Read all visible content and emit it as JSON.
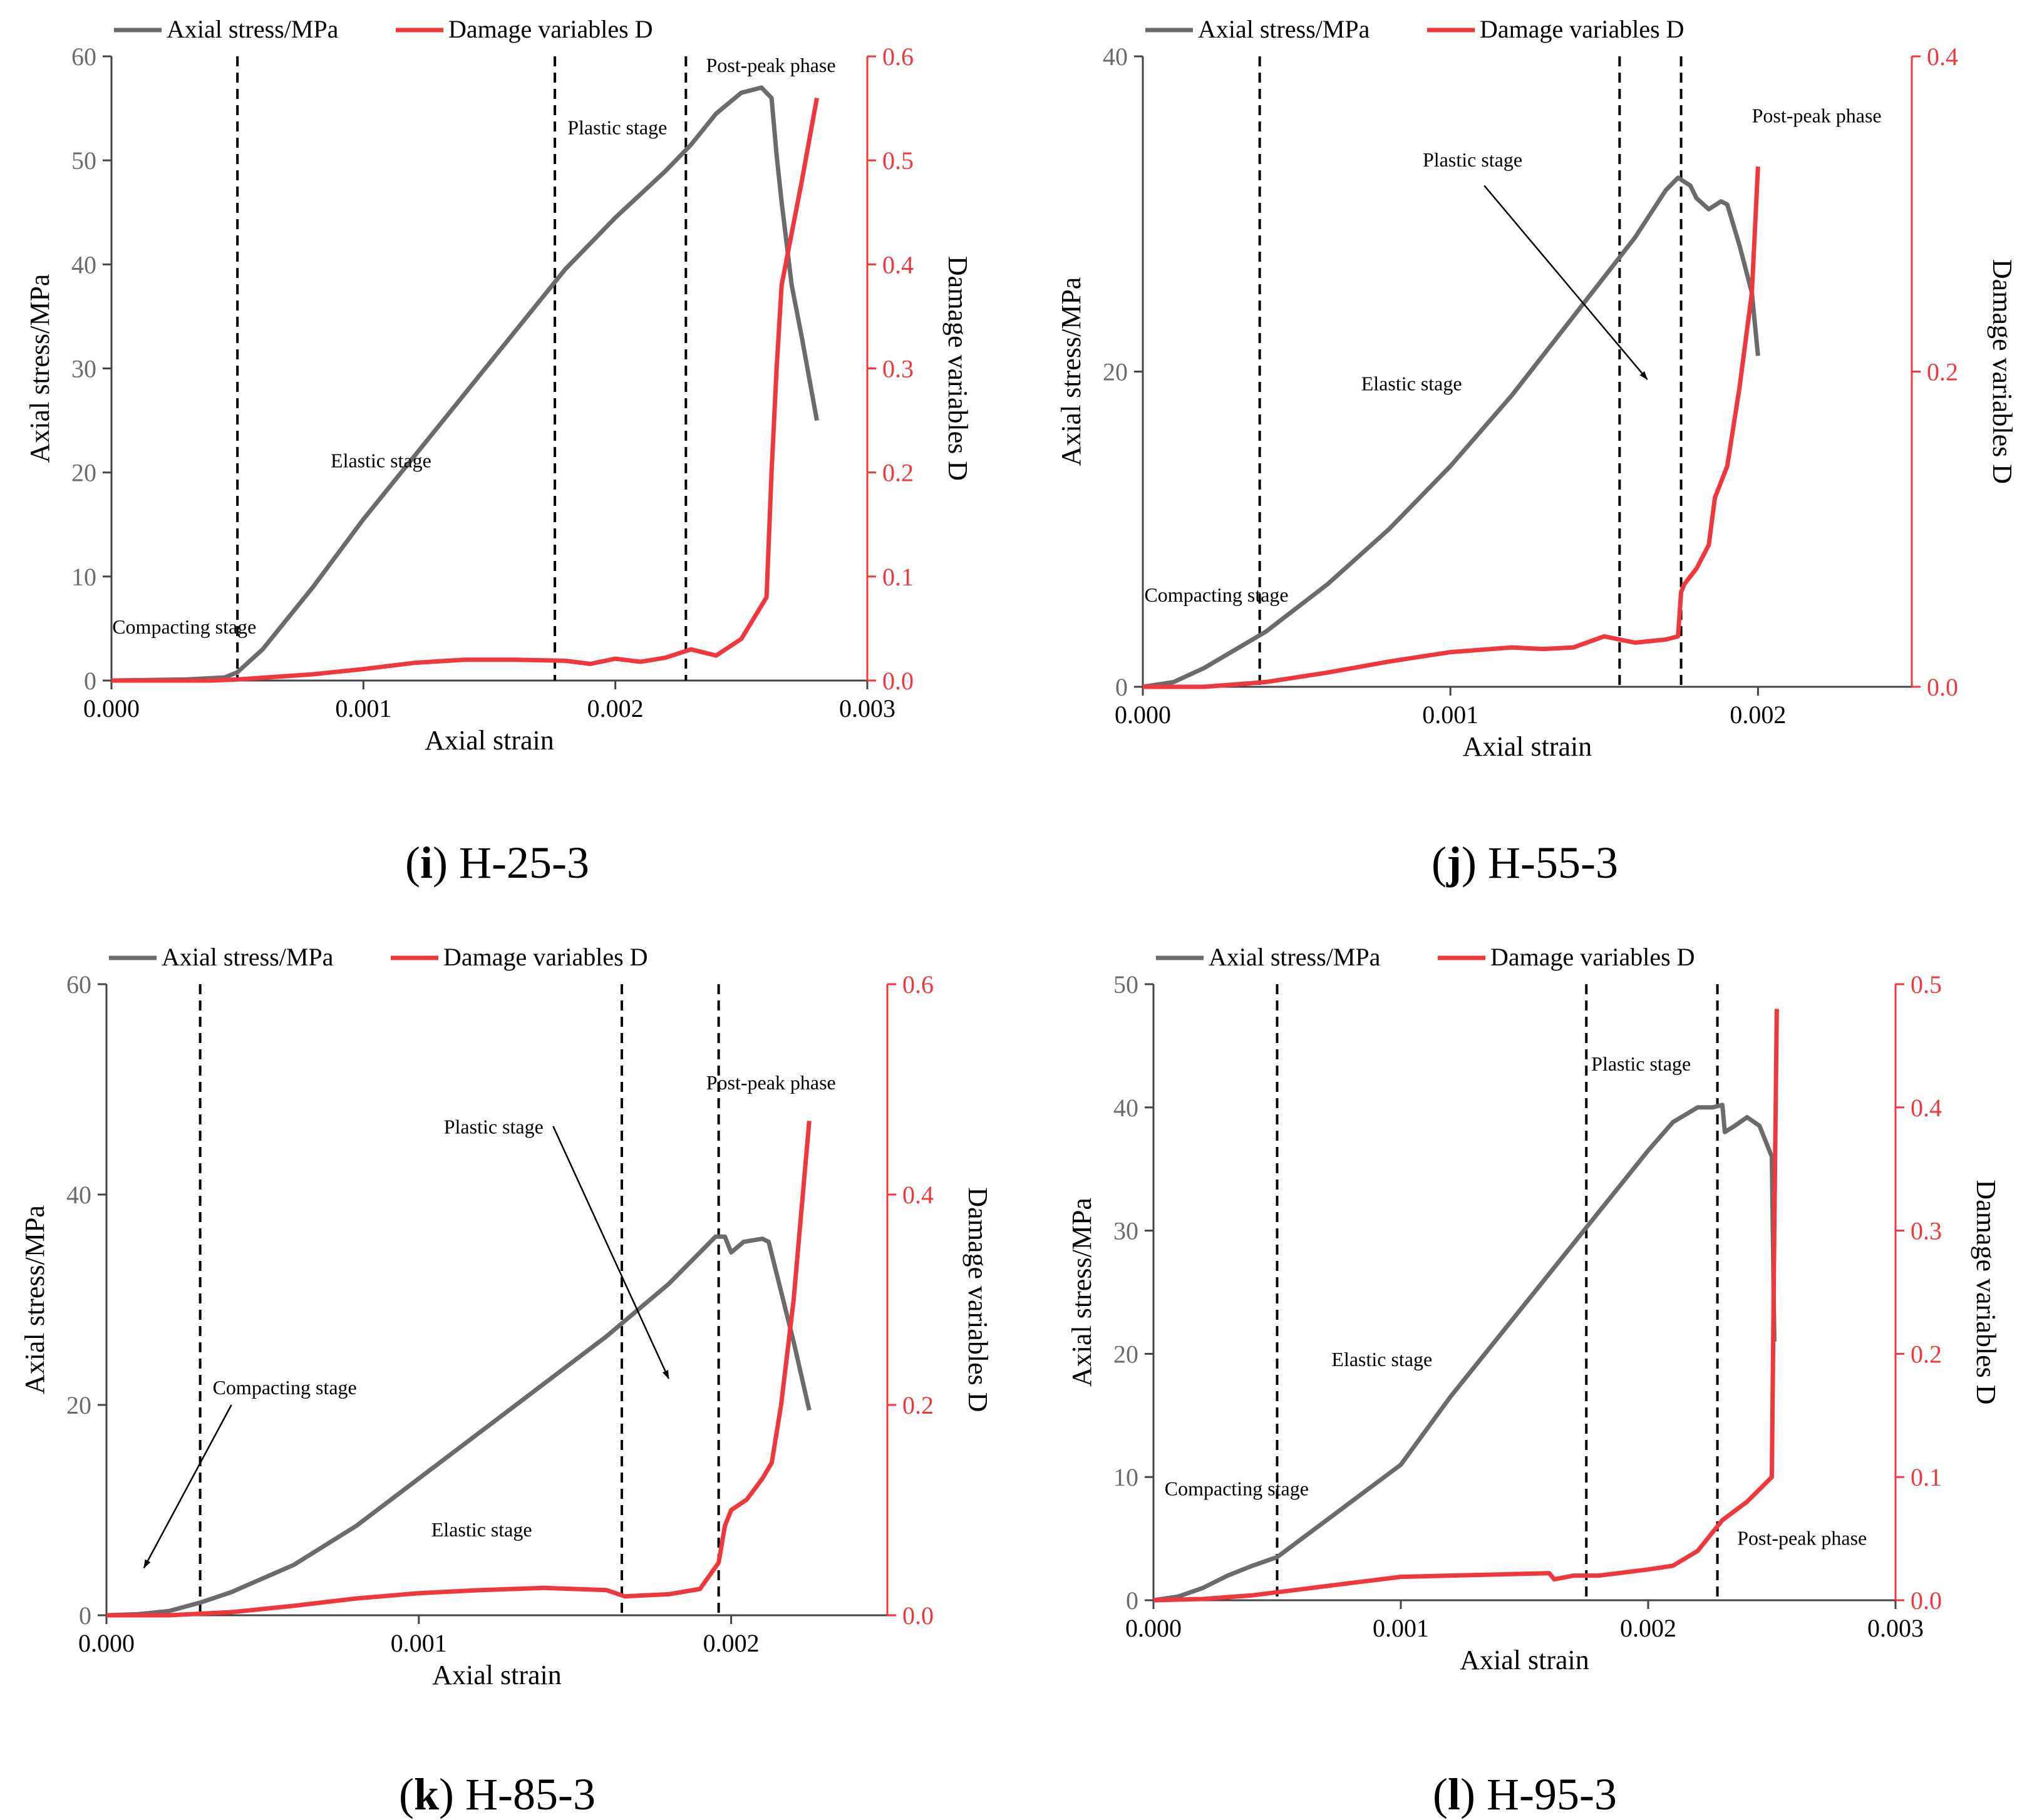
{
  "figure": {
    "legend_stress": "Axial stress/MPa",
    "legend_damage": "Damage variables D",
    "colors": {
      "stress": "#6b6b6b",
      "damage": "#f0383c",
      "axis_right": "#f0383c",
      "axis_left": "#555555",
      "text": "#000000"
    }
  },
  "chart_data": [
    {
      "type": "line",
      "id": "i",
      "caption_letter": "i",
      "caption_text": ") H-25-3",
      "caption_open": "(",
      "xlabel": "Axial strain",
      "ylabel": "Axial stress/MPa",
      "y2label": "Damage variables D",
      "xlim": [
        0,
        0.003
      ],
      "ylim": [
        0,
        60
      ],
      "y2lim": [
        0,
        0.6
      ],
      "xticks": [
        0,
        0.001,
        0.002,
        0.003
      ],
      "xtick_labels": [
        "0.000",
        "0.001",
        "0.002",
        "0.003"
      ],
      "yticks": [
        0,
        10,
        20,
        30,
        40,
        50,
        60
      ],
      "ytick_labels": [
        "0",
        "10",
        "20",
        "30",
        "40",
        "50",
        "60"
      ],
      "y2ticks": [
        0,
        0.1,
        0.2,
        0.3,
        0.4,
        0.5,
        0.6
      ],
      "y2tick_labels": [
        "0.0",
        "0.1",
        "0.2",
        "0.3",
        "0.4",
        "0.5",
        "0.6"
      ],
      "dividers": [
        0.0005,
        0.00176,
        0.00228
      ],
      "annotations": [
        {
          "text": "Compacting stage",
          "x": 3e-06,
          "y": 4.5
        },
        {
          "text": "Elastic stage",
          "x": 0.00087,
          "y": 20.5
        },
        {
          "text": "Plastic stage",
          "x": 0.00181,
          "y": 52.5
        },
        {
          "text": "Post-peak phase",
          "x": 0.00236,
          "y": 58.5
        }
      ],
      "arrows": [],
      "series": [
        {
          "name": "Axial stress/MPa",
          "axis": "left",
          "x": [
            0,
            0.0003,
            0.00045,
            0.0005,
            0.0006,
            0.0008,
            0.001,
            0.0012,
            0.0014,
            0.0016,
            0.0018,
            0.002,
            0.0022,
            0.0023,
            0.0024,
            0.0025,
            0.00258,
            0.00262,
            0.00264,
            0.00266,
            0.0027,
            0.00274,
            0.0028
          ],
          "values": [
            0,
            0.1,
            0.3,
            0.8,
            3,
            9,
            15.5,
            21.5,
            27.5,
            33.5,
            39.5,
            44.5,
            49,
            51.5,
            54.5,
            56.5,
            57,
            56,
            50.5,
            46,
            38,
            33,
            25
          ]
        },
        {
          "name": "Damage variables D",
          "axis": "right",
          "x": [
            0,
            0.0004,
            0.0005,
            0.0008,
            0.001,
            0.0012,
            0.0014,
            0.0016,
            0.0018,
            0.0019,
            0.002,
            0.0021,
            0.0022,
            0.0023,
            0.0024,
            0.0025,
            0.0026,
            0.00262,
            0.00264,
            0.00266,
            0.0027,
            0.00274,
            0.0028
          ],
          "values": [
            0,
            0,
            0.001,
            0.006,
            0.011,
            0.017,
            0.02,
            0.02,
            0.019,
            0.016,
            0.021,
            0.018,
            0.022,
            0.03,
            0.024,
            0.04,
            0.08,
            0.2,
            0.3,
            0.38,
            0.43,
            0.48,
            0.56
          ]
        }
      ]
    },
    {
      "type": "line",
      "id": "j",
      "caption_letter": "j",
      "caption_text": ") H-55-3",
      "caption_open": "(",
      "xlabel": "Axial strain",
      "ylabel": "Axial stress/MPa",
      "y2label": "Damage variables D",
      "xlim": [
        0,
        0.0025
      ],
      "ylim": [
        0,
        40
      ],
      "y2lim": [
        0,
        0.4
      ],
      "xticks": [
        0,
        0.001,
        0.002
      ],
      "xtick_labels": [
        "0.000",
        "0.001",
        "0.002"
      ],
      "yticks": [
        0,
        20,
        40
      ],
      "ytick_labels": [
        "0",
        "20",
        "40"
      ],
      "y2ticks": [
        0,
        0.2,
        0.4
      ],
      "y2tick_labels": [
        "0.0",
        "0.2",
        "0.4"
      ],
      "dividers": [
        0.00038,
        0.00155,
        0.00175
      ],
      "annotations": [
        {
          "text": "Compacting stage",
          "x": 5e-06,
          "y": 5.4
        },
        {
          "text": "Elastic stage",
          "x": 0.00071,
          "y": 18.8
        },
        {
          "text": "Plastic stage",
          "x": 0.00091,
          "y": 33.0
        },
        {
          "text": "Post-peak phase",
          "x": 0.00198,
          "y": 35.8
        }
      ],
      "arrows": [
        {
          "x1": 0.00111,
          "y1": 31.8,
          "x2": 0.00164,
          "y2": 19.5
        }
      ],
      "series": [
        {
          "name": "Axial stress/MPa",
          "axis": "left",
          "x": [
            0,
            0.0001,
            0.0002,
            0.0004,
            0.0006,
            0.0008,
            0.001,
            0.0012,
            0.0014,
            0.0016,
            0.0017,
            0.00174,
            0.00178,
            0.0018,
            0.00184,
            0.00188,
            0.0019,
            0.00194,
            0.00198,
            0.002
          ],
          "values": [
            0,
            0.3,
            1.2,
            3.5,
            6.5,
            10,
            14,
            18.5,
            23.5,
            28.5,
            31.5,
            32.3,
            31.8,
            31,
            30.3,
            30.8,
            30.6,
            28,
            25,
            21
          ]
        },
        {
          "name": "Damage variables D",
          "axis": "right",
          "x": [
            0,
            0.0002,
            0.0004,
            0.0006,
            0.0008,
            0.001,
            0.0012,
            0.0013,
            0.0014,
            0.0015,
            0.0016,
            0.0017,
            0.00174,
            0.00175,
            0.00176,
            0.0018,
            0.00184,
            0.00186,
            0.0019,
            0.00194,
            0.00198,
            0.002
          ],
          "values": [
            0,
            0,
            0.003,
            0.009,
            0.016,
            0.022,
            0.025,
            0.024,
            0.025,
            0.032,
            0.028,
            0.03,
            0.032,
            0.06,
            0.065,
            0.075,
            0.09,
            0.12,
            0.14,
            0.19,
            0.25,
            0.33
          ]
        }
      ]
    },
    {
      "type": "line",
      "id": "k",
      "caption_letter": "k",
      "caption_text": ") H-85-3",
      "caption_open": "(",
      "xlabel": "Axial strain",
      "ylabel": "Axial stress/MPa",
      "y2label": "Damage variables D",
      "xlim": [
        0,
        0.0025
      ],
      "ylim": [
        0,
        60
      ],
      "y2lim": [
        0,
        0.6
      ],
      "xticks": [
        0,
        0.001,
        0.002
      ],
      "xtick_labels": [
        "0.000",
        "0.001",
        "0.002"
      ],
      "yticks": [
        0,
        20,
        40,
        60
      ],
      "ytick_labels": [
        "0",
        "20",
        "40",
        "60"
      ],
      "y2ticks": [
        0,
        0.2,
        0.4,
        0.6
      ],
      "y2tick_labels": [
        "0.0",
        "0.2",
        "0.4",
        "0.6"
      ],
      "dividers": [
        0.0003,
        0.00165,
        0.00196
      ],
      "annotations": [
        {
          "text": "Compacting stage",
          "x": 0.00034,
          "y": 21.0
        },
        {
          "text": "Elastic stage",
          "x": 0.00104,
          "y": 7.5
        },
        {
          "text": "Plastic stage",
          "x": 0.00108,
          "y": 45.8
        },
        {
          "text": "Post-peak phase",
          "x": 0.00192,
          "y": 50.0
        }
      ],
      "arrows": [
        {
          "x1": 0.0004,
          "y1": 20.0,
          "x2": 0.00012,
          "y2": 4.5
        },
        {
          "x1": 0.00143,
          "y1": 46.5,
          "x2": 0.0018,
          "y2": 22.5
        }
      ],
      "series": [
        {
          "name": "Axial stress/MPa",
          "axis": "left",
          "x": [
            0,
            0.0001,
            0.0002,
            0.0003,
            0.0004,
            0.0006,
            0.0008,
            0.001,
            0.0012,
            0.0014,
            0.0016,
            0.0018,
            0.00195,
            0.00198,
            0.002,
            0.00204,
            0.0021,
            0.00212,
            0.0022,
            0.00225
          ],
          "values": [
            0,
            0.1,
            0.4,
            1.2,
            2.2,
            4.8,
            8.5,
            13,
            17.5,
            22,
            26.5,
            31.5,
            36,
            36,
            34.5,
            35.5,
            35.8,
            35.5,
            26,
            19.5
          ]
        },
        {
          "name": "Damage variables D",
          "axis": "right",
          "x": [
            0,
            0.0002,
            0.0004,
            0.0006,
            0.0008,
            0.001,
            0.0012,
            0.0014,
            0.0016,
            0.00166,
            0.0018,
            0.0019,
            0.00196,
            0.00198,
            0.002,
            0.00205,
            0.0021,
            0.00213,
            0.00216,
            0.0022,
            0.00225
          ],
          "values": [
            0,
            0,
            0.003,
            0.009,
            0.016,
            0.021,
            0.024,
            0.026,
            0.024,
            0.018,
            0.02,
            0.025,
            0.05,
            0.085,
            0.1,
            0.11,
            0.13,
            0.145,
            0.2,
            0.3,
            0.47
          ]
        }
      ]
    },
    {
      "type": "line",
      "id": "l",
      "caption_letter": "l",
      "caption_text": ") H-95-3",
      "caption_open": "(",
      "xlabel": "Axial strain",
      "ylabel": "Axial stress/MPa",
      "y2label": "Damage variables D",
      "xlim": [
        0,
        0.003
      ],
      "ylim": [
        0,
        50
      ],
      "y2lim": [
        0,
        0.5
      ],
      "xticks": [
        0,
        0.001,
        0.002,
        0.003
      ],
      "xtick_labels": [
        "0.000",
        "0.001",
        "0.002",
        "0.003"
      ],
      "yticks": [
        0,
        10,
        20,
        30,
        40,
        50
      ],
      "ytick_labels": [
        "0",
        "10",
        "20",
        "30",
        "40",
        "50"
      ],
      "y2ticks": [
        0,
        0.1,
        0.2,
        0.3,
        0.4,
        0.5
      ],
      "y2tick_labels": [
        "0.0",
        "0.1",
        "0.2",
        "0.3",
        "0.4",
        "0.5"
      ],
      "dividers": [
        0.0005,
        0.00175,
        0.00228
      ],
      "annotations": [
        {
          "text": "Compacting stage",
          "x": 4.5e-05,
          "y": 8.5
        },
        {
          "text": "Elastic stage",
          "x": 0.00072,
          "y": 19.0
        },
        {
          "text": "Plastic stage",
          "x": 0.00177,
          "y": 43.0
        },
        {
          "text": "Post-peak phase",
          "x": 0.00236,
          "y": 4.5
        }
      ],
      "arrows": [],
      "series": [
        {
          "name": "Axial stress/MPa",
          "axis": "left",
          "x": [
            0,
            0.0001,
            0.0002,
            0.0003,
            0.0004,
            0.0005,
            0.0007,
            0.0009,
            0.001,
            0.0012,
            0.0014,
            0.0016,
            0.0018,
            0.002,
            0.0021,
            0.0022,
            0.00226,
            0.0023,
            0.00231,
            0.00235,
            0.0024,
            0.00245,
            0.0025,
            0.00251
          ],
          "values": [
            0,
            0.3,
            1,
            2,
            2.8,
            3.5,
            6.5,
            9.5,
            11,
            16.5,
            21.5,
            26.5,
            31.5,
            36.5,
            38.8,
            40,
            40,
            40.2,
            38,
            38.5,
            39.2,
            38.5,
            36,
            21
          ]
        },
        {
          "name": "Damage variables D",
          "axis": "right",
          "x": [
            0,
            0.0002,
            0.0004,
            0.0006,
            0.0008,
            0.001,
            0.0012,
            0.0014,
            0.0016,
            0.00162,
            0.0017,
            0.0018,
            0.002,
            0.0021,
            0.0022,
            0.0023,
            0.0024,
            0.0025,
            0.00251,
            0.00252
          ],
          "values": [
            0,
            0.001,
            0.004,
            0.009,
            0.014,
            0.019,
            0.02,
            0.021,
            0.022,
            0.017,
            0.02,
            0.02,
            0.025,
            0.028,
            0.04,
            0.065,
            0.08,
            0.1,
            0.3,
            0.48
          ]
        }
      ]
    }
  ]
}
